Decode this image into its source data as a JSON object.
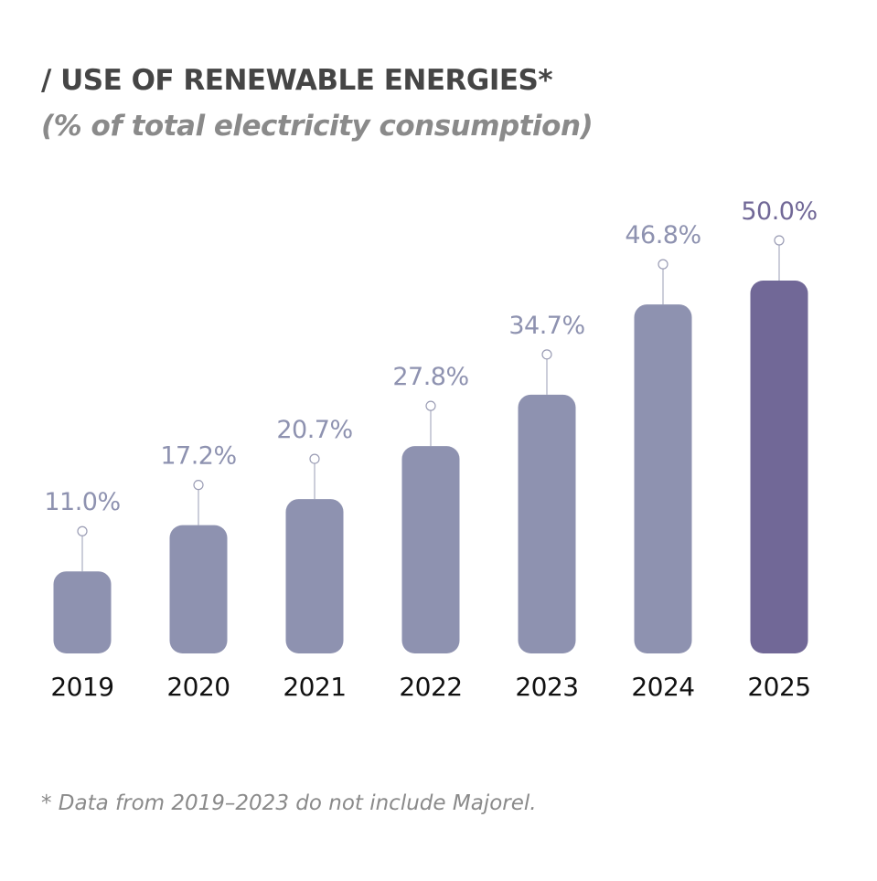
{
  "chart_data": {
    "type": "bar",
    "title": "/ USE OF RENEWABLE ENERGIES*",
    "subtitle": "(% of total electricity consumption)",
    "categories": [
      "2019",
      "2020",
      "2021",
      "2022",
      "2023",
      "2024",
      "2025"
    ],
    "values": [
      11.0,
      17.2,
      20.7,
      27.8,
      34.7,
      46.8,
      50.0
    ],
    "value_labels": [
      "11.0%",
      "17.2%",
      "20.7%",
      "27.8%",
      "34.7%",
      "46.8%",
      "50.0%"
    ],
    "colors": {
      "bar": "#8e92b0",
      "highlight_bar": "#716897",
      "value_label": "#8e92b0",
      "highlight_value_label": "#716897",
      "category_label": "#111111"
    },
    "highlight_index": 6,
    "grid": false,
    "legend": "none",
    "footnote": "* Data from 2019–2023 do not include Majorel."
  }
}
